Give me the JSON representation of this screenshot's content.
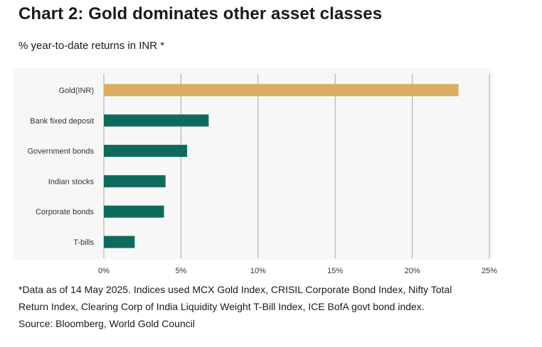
{
  "title": "Chart 2: Gold dominates other asset classes",
  "subtitle": "% year-to-date returns in INR *",
  "footnote": {
    "line1": "*Data as of 14 May 2025. Indices used MCX Gold Index, CRISIL Corporate Bond Index, Nifty Total",
    "line2": "Return Index, Clearing Corp of India Liquidity Weight T-Bill Index, ICE BofA govt bond index.",
    "source": "Source: Bloomberg, World Gold Council"
  },
  "colors": {
    "gold": "#D9AE5F",
    "teal": "#0E6B5C",
    "grid": "#a8a8a8",
    "plot_background": "#f7f7f7"
  },
  "chart_data": {
    "type": "bar",
    "orientation": "horizontal",
    "categories": [
      "Gold(INR)",
      "Bank fixed deposit",
      "Government bonds",
      "Indian stocks",
      "Corporate bonds",
      "T-bills"
    ],
    "values": [
      23.0,
      6.8,
      5.4,
      4.0,
      3.9,
      2.0
    ],
    "bar_colors": [
      "#D9AE5F",
      "#0E6B5C",
      "#0E6B5C",
      "#0E6B5C",
      "#0E6B5C",
      "#0E6B5C"
    ],
    "xlim": [
      0,
      25
    ],
    "xticks": [
      0,
      5,
      10,
      15,
      20,
      25
    ],
    "xtick_labels": [
      "0%",
      "5%",
      "10%",
      "15%",
      "20%",
      "25%"
    ],
    "grid": "vertical",
    "legend": "none",
    "title": "Chart 2: Gold dominates other asset classes",
    "subtitle": "% year-to-date returns in INR *"
  }
}
